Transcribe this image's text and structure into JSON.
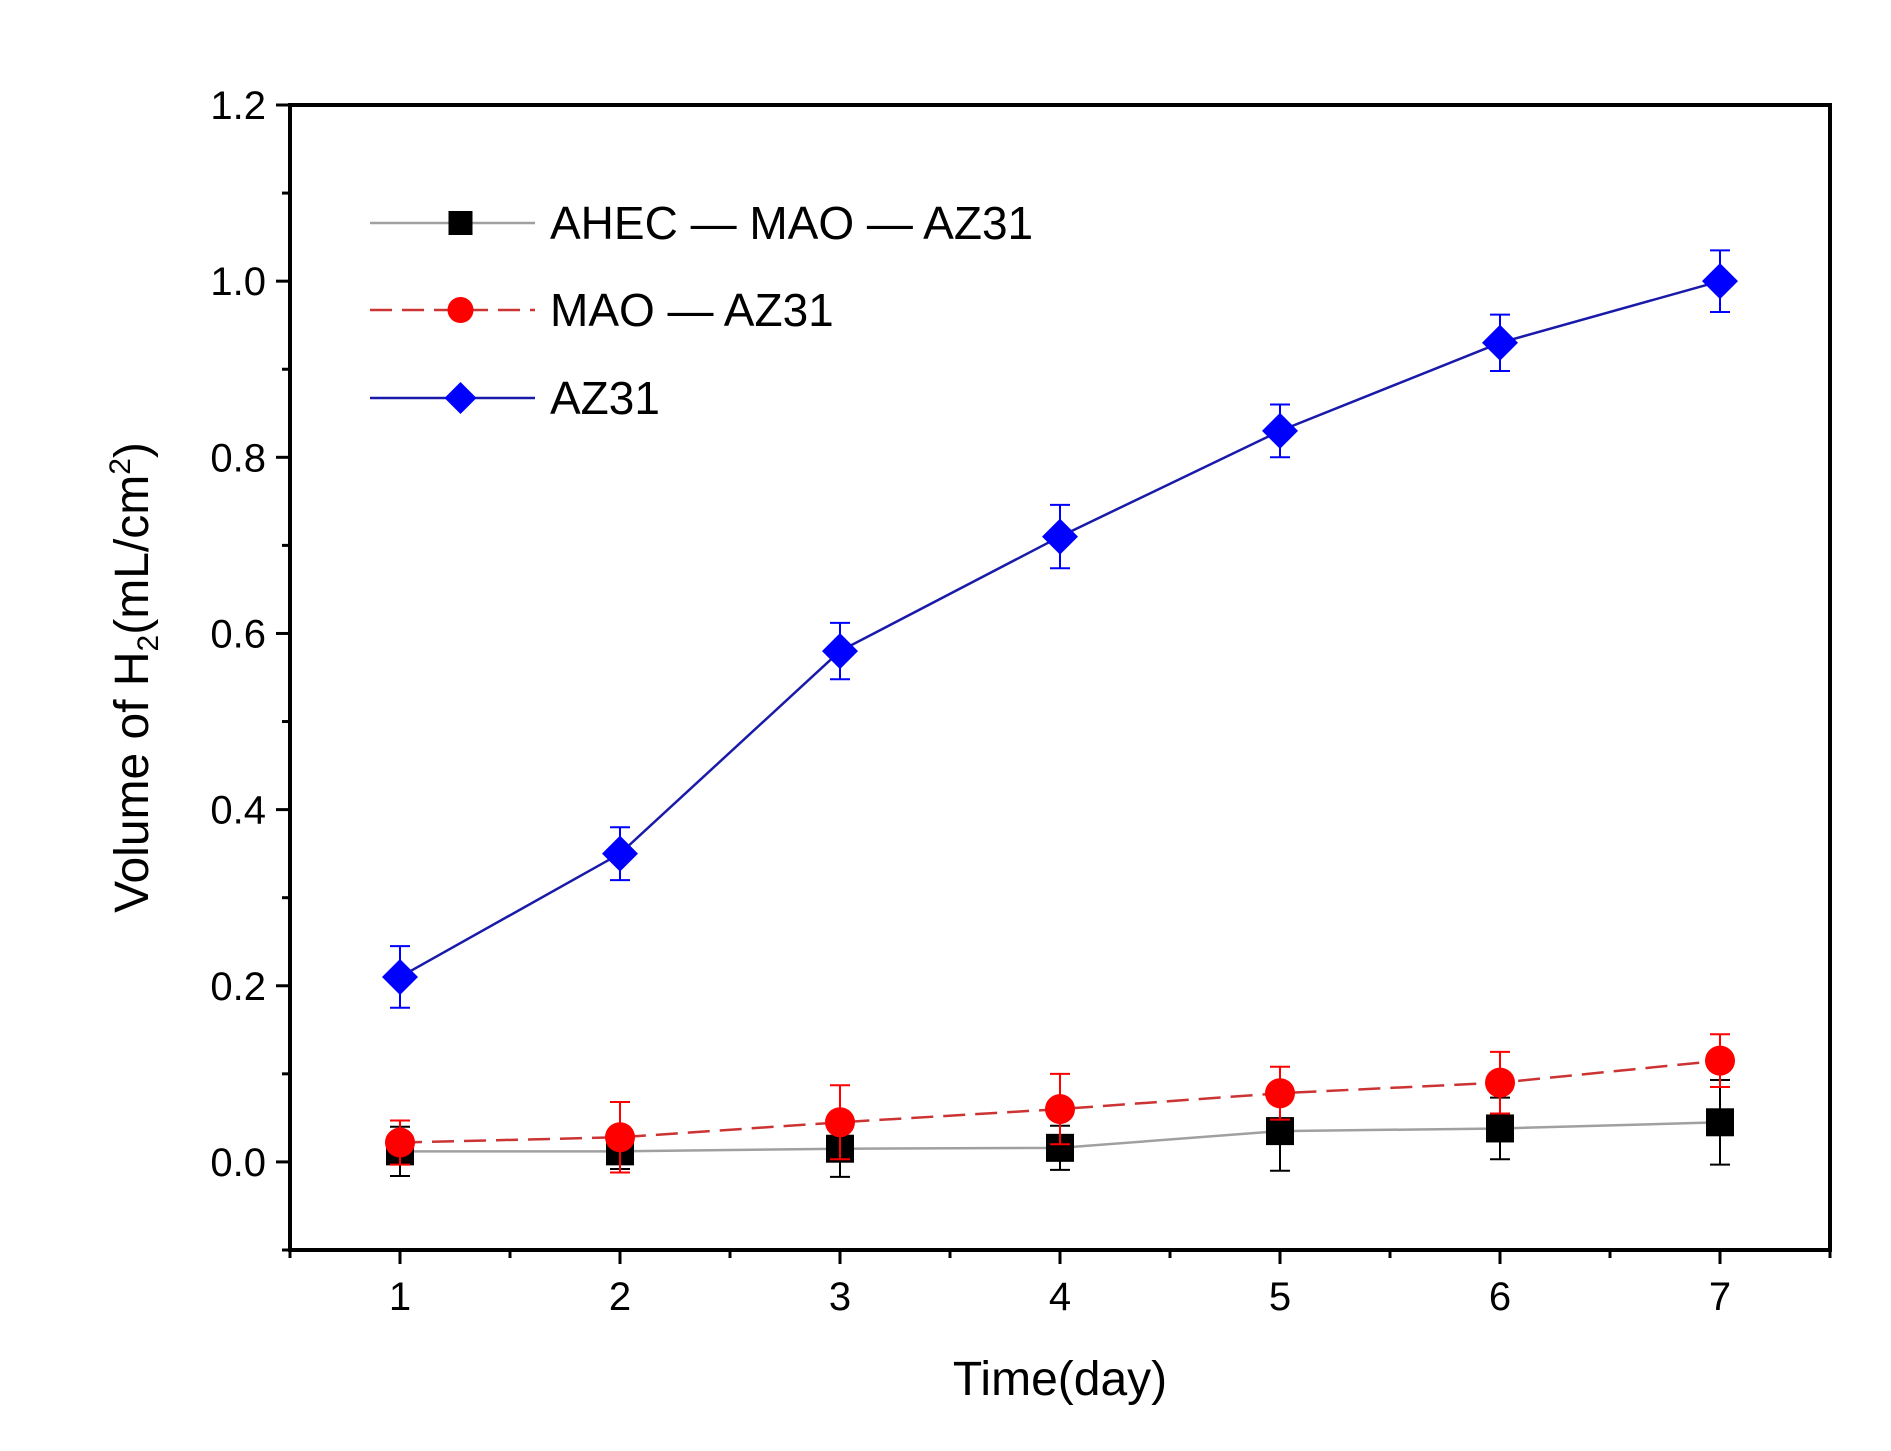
{
  "chart_data": {
    "type": "line",
    "title": "",
    "xlabel": "Time(day)",
    "ylabel": {
      "prefix": "Volume of H",
      "sub": "2",
      "mid": "(mL/cm",
      "sup": "2",
      "suffix": ")"
    },
    "xlim": [
      0.5,
      7.5
    ],
    "ylim": [
      -0.1,
      1.2
    ],
    "x": [
      1,
      2,
      3,
      4,
      5,
      6,
      7
    ],
    "x_tick_labels": [
      "1",
      "2",
      "3",
      "4",
      "5",
      "6",
      "7"
    ],
    "y_ticks": [
      0.0,
      0.2,
      0.4,
      0.6,
      0.8,
      1.0,
      1.2
    ],
    "y_tick_labels": [
      "0.0",
      "0.2",
      "0.4",
      "0.6",
      "0.8",
      "1.0",
      "1.2"
    ],
    "grid": false,
    "legend_position": "top-left",
    "series": [
      {
        "name": "AHEC — MAO — AZ31",
        "color": "#000000",
        "line_color": "#a0a0a0",
        "marker": "square",
        "line_style": "solid",
        "values": [
          0.012,
          0.012,
          0.015,
          0.016,
          0.035,
          0.038,
          0.045
        ],
        "errors": [
          0.028,
          0.02,
          0.032,
          0.025,
          0.045,
          0.035,
          0.048
        ]
      },
      {
        "name": "MAO — AZ31",
        "color": "#ff0000",
        "line_color": "#cc3333",
        "marker": "circle",
        "line_style": "dashed",
        "values": [
          0.022,
          0.028,
          0.045,
          0.06,
          0.078,
          0.09,
          0.115
        ],
        "errors": [
          0.025,
          0.04,
          0.042,
          0.04,
          0.03,
          0.035,
          0.03
        ]
      },
      {
        "name": "AZ31",
        "color": "#0000ff",
        "line_color": "#1a1aaa",
        "marker": "diamond",
        "line_style": "solid",
        "values": [
          0.21,
          0.35,
          0.58,
          0.71,
          0.83,
          0.93,
          1.0
        ],
        "errors": [
          0.035,
          0.03,
          0.032,
          0.036,
          0.03,
          0.032,
          0.035
        ]
      }
    ]
  }
}
